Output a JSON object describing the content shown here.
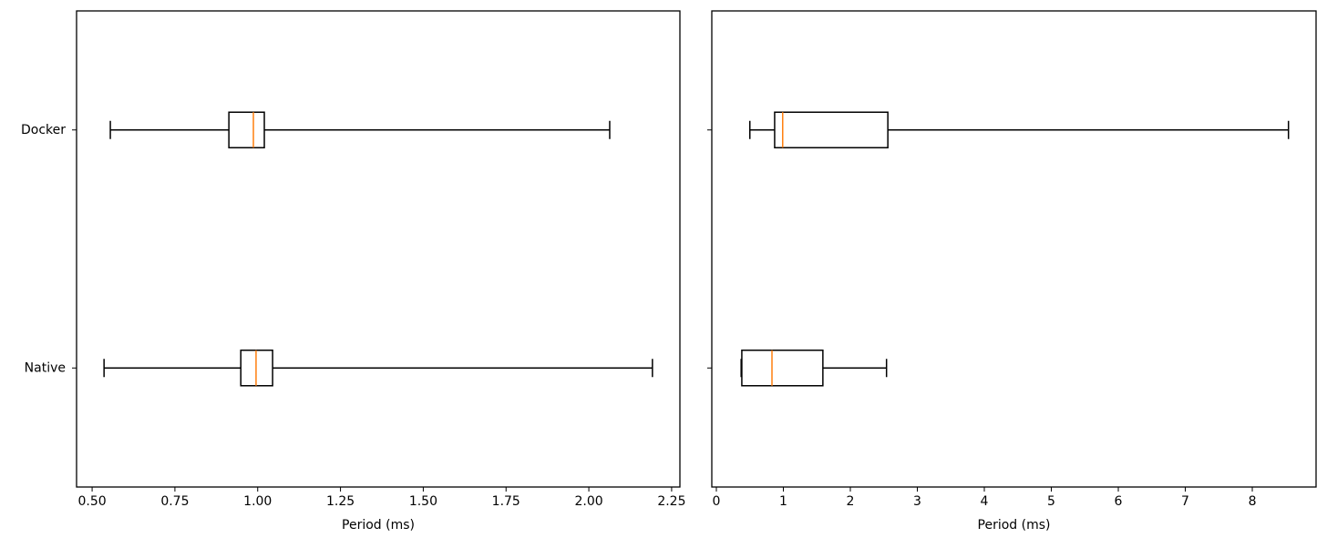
{
  "chart_data": [
    {
      "type": "boxplot",
      "orientation": "horizontal",
      "xlabel": "Period (ms)",
      "categories": [
        "Docker",
        "Native"
      ],
      "boxes": [
        {
          "whislo": 0.555,
          "q1": 0.913,
          "med": 0.987,
          "q3": 1.02,
          "whishi": 2.063
        },
        {
          "whislo": 0.536,
          "q1": 0.949,
          "med": 0.995,
          "q3": 1.045,
          "whishi": 2.192
        }
      ],
      "color": "#000000",
      "median_color": "#ff7f0e",
      "xlim": [
        0.453,
        2.275
      ],
      "xticks": [
        {
          "value": 0.5,
          "label": "0.50"
        },
        {
          "value": 0.75,
          "label": "0.75"
        },
        {
          "value": 1.0,
          "label": "1.00"
        },
        {
          "value": 1.25,
          "label": "1.25"
        },
        {
          "value": 1.5,
          "label": "1.50"
        },
        {
          "value": 1.75,
          "label": "1.75"
        },
        {
          "value": 2.0,
          "label": "2.00"
        },
        {
          "value": 2.25,
          "label": "2.25"
        }
      ]
    },
    {
      "type": "boxplot",
      "orientation": "horizontal",
      "xlabel": "Period (ms)",
      "categories": [
        null,
        null
      ],
      "boxes": [
        {
          "whislo": 0.5,
          "q1": 0.87,
          "med": 0.99,
          "q3": 2.56,
          "whishi": 8.54
        },
        {
          "whislo": 0.37,
          "q1": 0.38,
          "med": 0.83,
          "q3": 1.59,
          "whishi": 2.54
        }
      ],
      "color": "#000000",
      "median_color": "#ff7f0e",
      "xlim": [
        -0.068,
        8.952
      ],
      "xticks": [
        0,
        1,
        2,
        3,
        4,
        5,
        6,
        7,
        8
      ]
    }
  ]
}
